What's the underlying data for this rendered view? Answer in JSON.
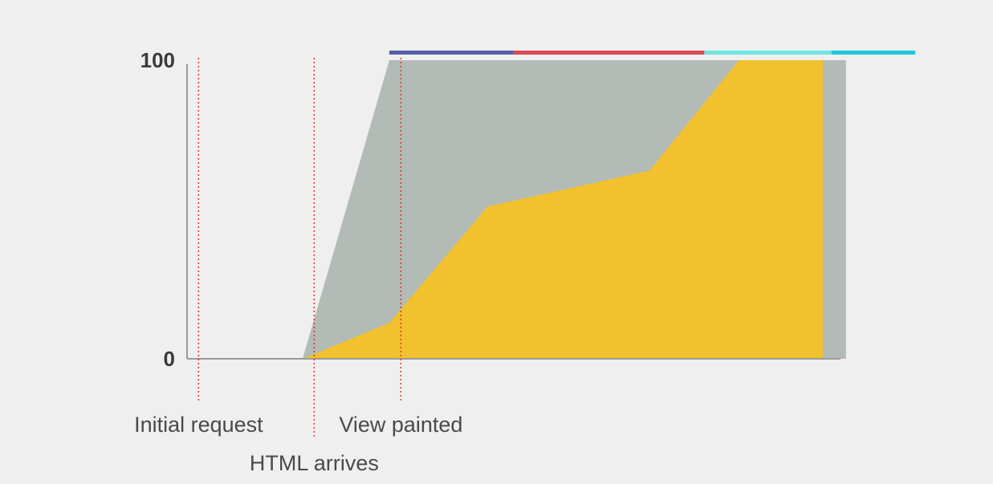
{
  "chart_data": {
    "type": "area",
    "title": "",
    "xlabel": "",
    "ylabel": "",
    "ylim": [
      0,
      100
    ],
    "yticks": [
      0,
      100
    ],
    "grid": false,
    "colors": {
      "upper": "#b3bbb6",
      "lower": "#f2c12e",
      "markers": "#d9342b",
      "axis": "#9a9a9a"
    },
    "series": [
      {
        "points": [
          [
            0,
            0
          ],
          [
            40,
            0
          ],
          [
            70,
            100
          ],
          [
            148,
            100
          ],
          [
            220,
            100
          ],
          [
            228,
            100
          ]
        ]
      },
      {
        "points": [
          [
            0,
            0
          ],
          [
            40,
            0
          ],
          [
            70,
            12
          ],
          [
            104,
            51
          ],
          [
            160,
            63
          ],
          [
            191,
            100
          ],
          [
            220,
            100
          ]
        ]
      }
    ],
    "markers": [
      {
        "x": 4,
        "label": "Initial request",
        "label_row": 1
      },
      {
        "x": 44,
        "label": "HTML arrives",
        "label_row": 2
      },
      {
        "x": 74,
        "label": "View painted",
        "label_row": 1
      }
    ],
    "top_bar": [
      {
        "x0": 70,
        "x1": 113,
        "color": "#5660a8"
      },
      {
        "x0": 113,
        "x1": 179,
        "color": "#d84a55"
      },
      {
        "x0": 179,
        "x1": 223,
        "color": "#6fe6e0"
      },
      {
        "x0": 223,
        "x1": 252,
        "color": "#1fc8dc"
      }
    ]
  }
}
